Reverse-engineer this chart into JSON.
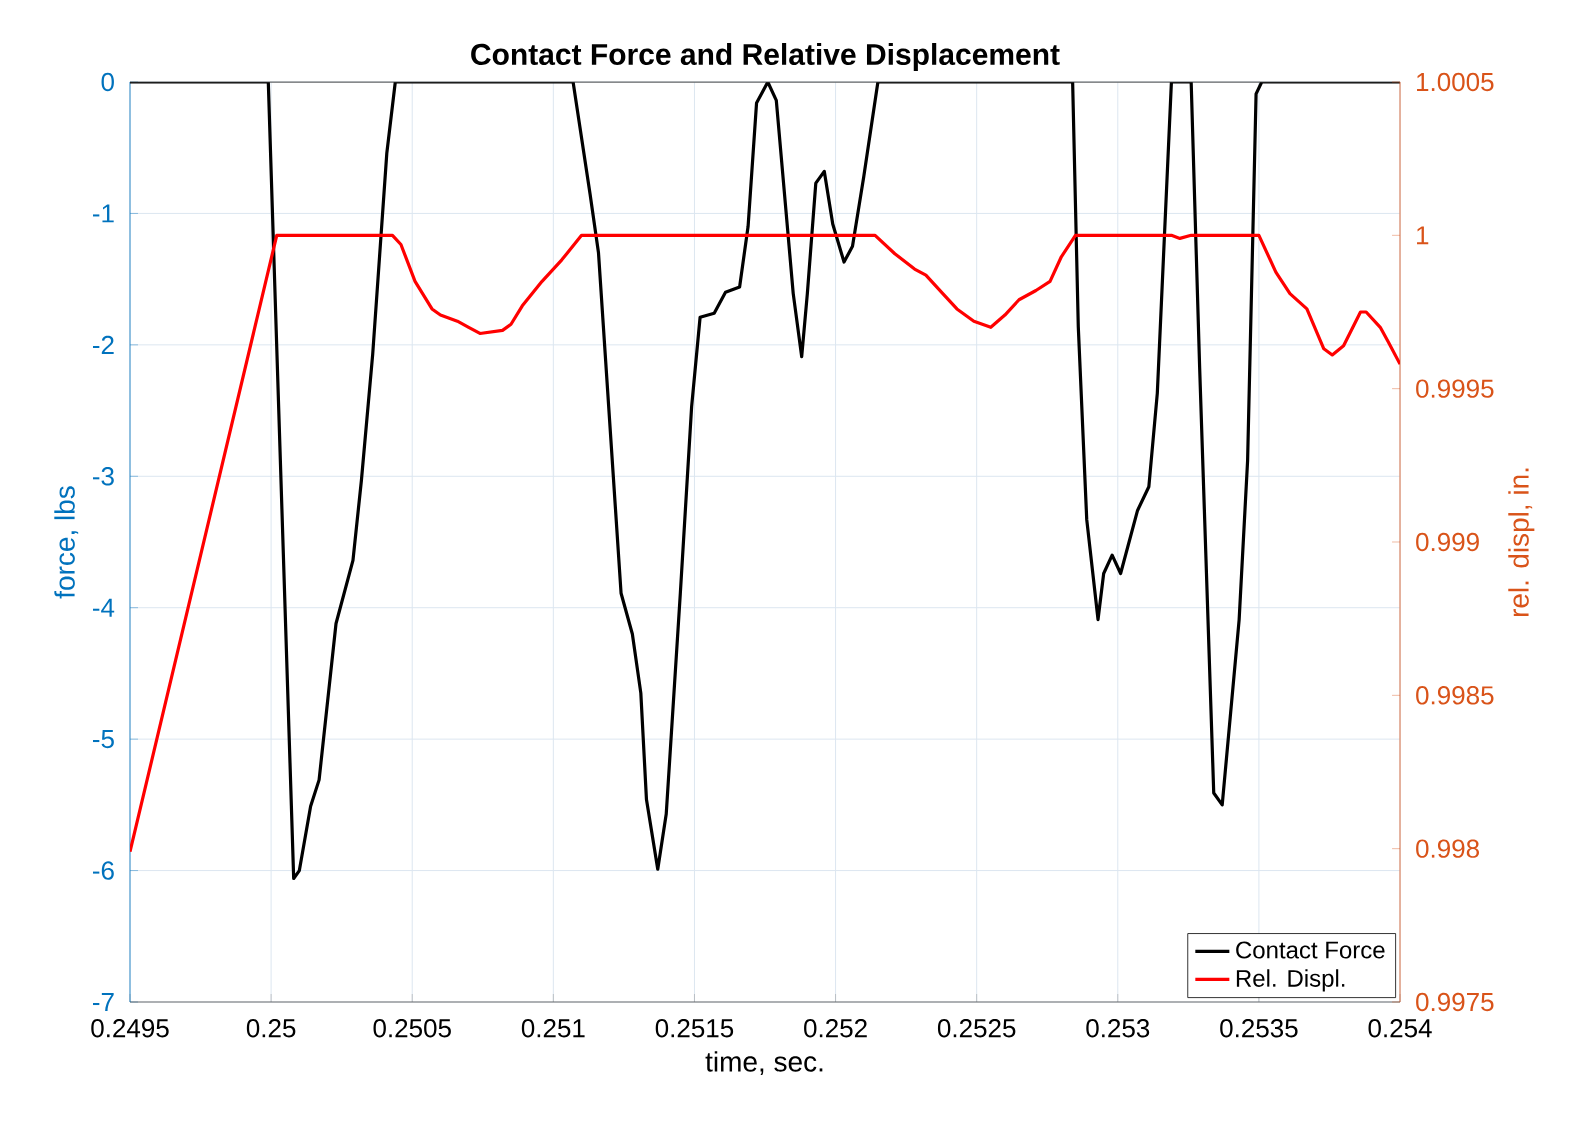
{
  "chart_data": {
    "type": "line",
    "title": "Contact Force and Relative Displacement",
    "xlabel": "time, sec.",
    "ylabel": "force, lbs",
    "y2label": "rel. displ, in.",
    "xlim": [
      0.2495,
      0.254
    ],
    "xticks": [
      0.2495,
      0.25,
      0.2505,
      0.251,
      0.2515,
      0.252,
      0.2525,
      0.253,
      0.2535,
      0.254
    ],
    "ylim": [
      -7,
      0
    ],
    "yticks": [
      -7,
      -6,
      -5,
      -4,
      -3,
      -2,
      -1,
      0
    ],
    "y2lim": [
      0.9975,
      1.0005
    ],
    "y2ticks": [
      0.9975,
      0.998,
      0.9985,
      0.999,
      0.9995,
      1,
      1.0005
    ],
    "grid": true,
    "legend": "bottom right",
    "series": [
      {
        "name": "Contact Force",
        "color": "#000000",
        "x": [
          0.2495,
          0.24999,
          0.25008,
          0.2501,
          0.25014,
          0.25017,
          0.25023,
          0.25029,
          0.25032,
          0.25036,
          0.25041,
          0.25044,
          0.25107,
          0.25113,
          0.25116,
          0.25124,
          0.25128,
          0.25131,
          0.25133,
          0.25137,
          0.2514,
          0.25145,
          0.25149,
          0.25152,
          0.25157,
          0.25161,
          0.25166,
          0.25169,
          0.25172,
          0.25176,
          0.25179,
          0.25185,
          0.25188,
          0.2519,
          0.25193,
          0.25196,
          0.25199,
          0.25203,
          0.25206,
          0.2521,
          0.25215,
          0.25284,
          0.25286,
          0.25289,
          0.25293,
          0.25295,
          0.25298,
          0.25301,
          0.25307,
          0.25311,
          0.25314,
          0.25319,
          0.25326,
          0.25329,
          0.25334,
          0.25337,
          0.25343,
          0.25346,
          0.25349,
          0.25351,
          0.254
        ],
        "values": [
          0,
          0,
          -6.06,
          -6.0,
          -5.51,
          -5.31,
          -4.12,
          -3.64,
          -3.03,
          -2.07,
          -0.54,
          0,
          0,
          -0.85,
          -1.3,
          -3.89,
          -4.2,
          -4.65,
          -5.46,
          -5.99,
          -5.57,
          -3.89,
          -2.47,
          -1.79,
          -1.76,
          -1.6,
          -1.56,
          -1.1,
          -0.16,
          0,
          -0.14,
          -1.61,
          -2.09,
          -1.61,
          -0.77,
          -0.68,
          -1.08,
          -1.37,
          -1.25,
          -0.72,
          0,
          0,
          -1.86,
          -3.33,
          -4.09,
          -3.74,
          -3.6,
          -3.74,
          -3.26,
          -3.08,
          -2.37,
          0,
          0,
          -2.17,
          -5.41,
          -5.5,
          -4.09,
          -2.88,
          -0.09,
          0,
          0
        ]
      },
      {
        "name": "Rel. Displ.",
        "color": "#ff0000",
        "axis": "y2",
        "x": [
          0.2495,
          0.25002,
          0.25043,
          0.25046,
          0.25051,
          0.25057,
          0.2506,
          0.25066,
          0.2507,
          0.25074,
          0.25082,
          0.25085,
          0.25089,
          0.25096,
          0.25103,
          0.2511,
          0.25214,
          0.25221,
          0.25228,
          0.25232,
          0.25238,
          0.25243,
          0.25249,
          0.25255,
          0.2526,
          0.25265,
          0.25271,
          0.25276,
          0.2528,
          0.25285,
          0.25319,
          0.25322,
          0.25326,
          0.2535,
          0.25356,
          0.25361,
          0.25367,
          0.25373,
          0.25376,
          0.2538,
          0.25386,
          0.25388,
          0.25393,
          0.25396,
          0.254
        ],
        "values": [
          0.99799,
          1,
          1,
          0.99997,
          0.99985,
          0.99976,
          0.99974,
          0.99972,
          0.9997,
          0.99968,
          0.99969,
          0.99971,
          0.99977,
          0.99985,
          0.99992,
          1,
          1,
          0.99994,
          0.99989,
          0.99987,
          0.99981,
          0.99976,
          0.99972,
          0.9997,
          0.99974,
          0.99979,
          0.99982,
          0.99985,
          0.99993,
          1,
          1,
          0.99999,
          1,
          1,
          0.99988,
          0.99981,
          0.99976,
          0.99963,
          0.99961,
          0.99964,
          0.99975,
          0.99975,
          0.9997,
          0.99965,
          0.99958
        ]
      }
    ]
  }
}
